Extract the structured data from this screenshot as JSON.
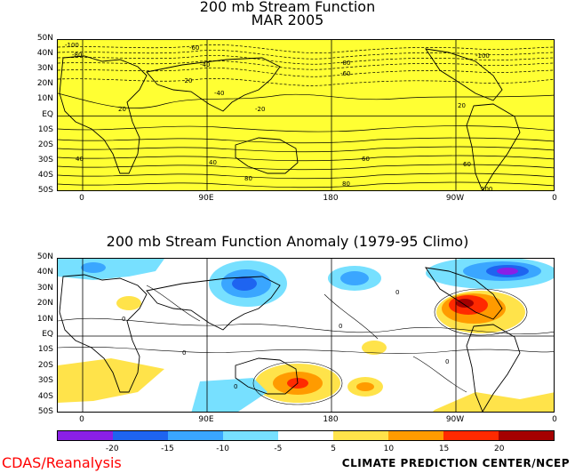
{
  "top_panel": {
    "title_line1": "200 mb Stream Function",
    "title_line2": "MAR 2005",
    "lat_labels": [
      "50N",
      "40N",
      "30N",
      "20N",
      "10N",
      "EQ",
      "10S",
      "20S",
      "30S",
      "40S",
      "50S"
    ],
    "lon_labels": [
      "0",
      "90E",
      "180",
      "90W",
      "0"
    ],
    "contour_labels": [
      "-100",
      "-80",
      "-60",
      "-40",
      "-20",
      "20",
      "40",
      "60",
      "80",
      "-100",
      "-80",
      "-60",
      "-40",
      "-20",
      "20",
      "40",
      "60",
      "80",
      "100"
    ]
  },
  "bottom_panel": {
    "title": "200 mb Stream Function Anomaly (1979-95 Climo)",
    "lat_labels": [
      "50N",
      "40N",
      "30N",
      "20N",
      "10N",
      "EQ",
      "10S",
      "20S",
      "30S",
      "40S",
      "50S"
    ],
    "lon_labels": [
      "0",
      "90E",
      "180",
      "90W",
      "0"
    ],
    "contour_labels": [
      "0",
      "0",
      "0",
      "0",
      "0",
      "0"
    ]
  },
  "colorbar": {
    "labels": [
      "-20",
      "-15",
      "-10",
      "-5",
      "5",
      "10",
      "15",
      "20"
    ],
    "colors": [
      "#8a1fe6",
      "#1e64f0",
      "#3aa6ff",
      "#77e0ff",
      "#ffffff",
      "#ffe34a",
      "#ff9b00",
      "#ff2a00",
      "#a50000"
    ]
  },
  "colors": {
    "top_fill": "#ffff33",
    "strong_positive": "#ff0000",
    "strong_negative": "#1e64f0"
  },
  "footer": {
    "left": "CDAS/Reanalysis",
    "right": "CLIMATE PREDICTION CENTER/NCEP"
  }
}
